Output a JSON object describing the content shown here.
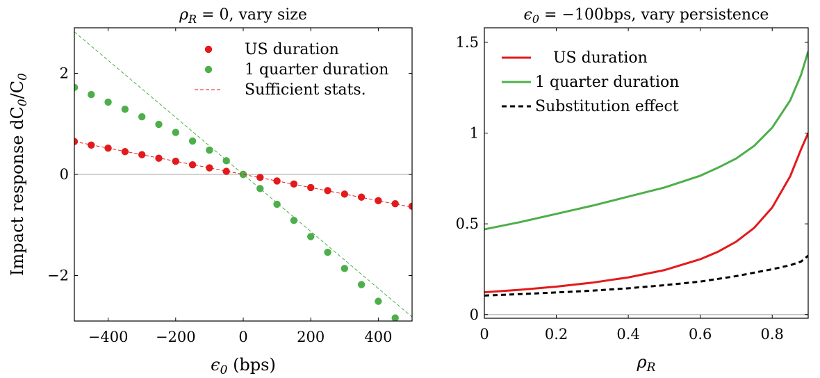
{
  "chart_data": [
    {
      "type": "scatter",
      "title": "ρ_R = 0, vary size",
      "xlabel": "ϵ_0 (bps)",
      "ylabel": "Impact response dC_0/C_0",
      "xlim": [
        -500,
        500
      ],
      "ylim": [
        -2.9,
        2.9
      ],
      "xticks": [
        -400,
        -200,
        0,
        200,
        400
      ],
      "xtick_labels": [
        "−400",
        "−200",
        "0",
        "200",
        "400"
      ],
      "yticks": [
        -2,
        0,
        2
      ],
      "ytick_labels": [
        "−2",
        "0",
        "2"
      ],
      "zero_line": true,
      "legend_position": "top-right",
      "series": [
        {
          "name": "US duration",
          "kind": "points",
          "color": "#e31a1c",
          "x": [
            -500,
            -450,
            -400,
            -350,
            -300,
            -250,
            -200,
            -150,
            -100,
            -50,
            0,
            50,
            100,
            150,
            200,
            250,
            300,
            350,
            400,
            450,
            500
          ],
          "y": [
            0.65,
            0.58,
            0.52,
            0.45,
            0.39,
            0.32,
            0.26,
            0.19,
            0.13,
            0.06,
            0,
            -0.06,
            -0.13,
            -0.19,
            -0.26,
            -0.32,
            -0.39,
            -0.45,
            -0.52,
            -0.58,
            -0.63
          ]
        },
        {
          "name": "1 quarter duration",
          "kind": "points",
          "color": "#4daf4a",
          "x": [
            -500,
            -450,
            -400,
            -350,
            -300,
            -250,
            -200,
            -150,
            -100,
            -50,
            0,
            50,
            100,
            150,
            200,
            250,
            300,
            350,
            400,
            450
          ],
          "y": [
            1.72,
            1.58,
            1.43,
            1.29,
            1.14,
            0.99,
            0.83,
            0.66,
            0.48,
            0.27,
            0,
            -0.28,
            -0.59,
            -0.91,
            -1.23,
            -1.54,
            -1.86,
            -2.18,
            -2.51,
            -2.84
          ]
        },
        {
          "name": "Sufficient stats.",
          "kind": "dashed-line",
          "color": "#e31a1c",
          "x": [
            -500,
            500
          ],
          "y": [
            0.65,
            -0.65
          ]
        },
        {
          "name": "",
          "kind": "dashed-line",
          "color": "#4daf4a",
          "x": [
            -500,
            500
          ],
          "y": [
            2.82,
            -2.82
          ]
        }
      ]
    },
    {
      "type": "line",
      "title": "ϵ_0 = −100bps, vary persistence",
      "xlabel": "ρ_R",
      "ylabel": "",
      "xlim": [
        0,
        0.9
      ],
      "ylim": [
        -0.02,
        1.58
      ],
      "xticks": [
        0,
        0.2,
        0.4,
        0.6,
        0.8
      ],
      "xtick_labels": [
        "0",
        "0.2",
        "0.4",
        "0.6",
        "0.8"
      ],
      "yticks": [
        0,
        0.5,
        1,
        1.5
      ],
      "ytick_labels": [
        "0",
        "0.5",
        "1",
        "1.5"
      ],
      "zero_line": true,
      "legend_position": "top-left",
      "series": [
        {
          "name": "US duration",
          "kind": "solid-line",
          "color": "#e31a1c",
          "x": [
            0,
            0.1,
            0.2,
            0.3,
            0.4,
            0.5,
            0.6,
            0.65,
            0.7,
            0.75,
            0.8,
            0.85,
            0.88,
            0.9
          ],
          "y": [
            0.123,
            0.137,
            0.154,
            0.176,
            0.205,
            0.245,
            0.305,
            0.347,
            0.402,
            0.478,
            0.59,
            0.762,
            0.91,
            1.0
          ]
        },
        {
          "name": "1 quarter duration",
          "kind": "solid-line",
          "color": "#4daf4a",
          "x": [
            0,
            0.1,
            0.2,
            0.3,
            0.4,
            0.5,
            0.6,
            0.65,
            0.7,
            0.75,
            0.8,
            0.85,
            0.88,
            0.9
          ],
          "y": [
            0.47,
            0.51,
            0.555,
            0.6,
            0.65,
            0.7,
            0.765,
            0.81,
            0.86,
            0.93,
            1.03,
            1.18,
            1.32,
            1.45
          ]
        },
        {
          "name": "Substitution effect",
          "kind": "dashed-line",
          "color": "#000000",
          "x": [
            0,
            0.1,
            0.2,
            0.3,
            0.4,
            0.5,
            0.6,
            0.7,
            0.8,
            0.85,
            0.88,
            0.9
          ],
          "y": [
            0.105,
            0.113,
            0.122,
            0.132,
            0.145,
            0.162,
            0.182,
            0.212,
            0.25,
            0.272,
            0.292,
            0.325
          ]
        }
      ]
    }
  ]
}
